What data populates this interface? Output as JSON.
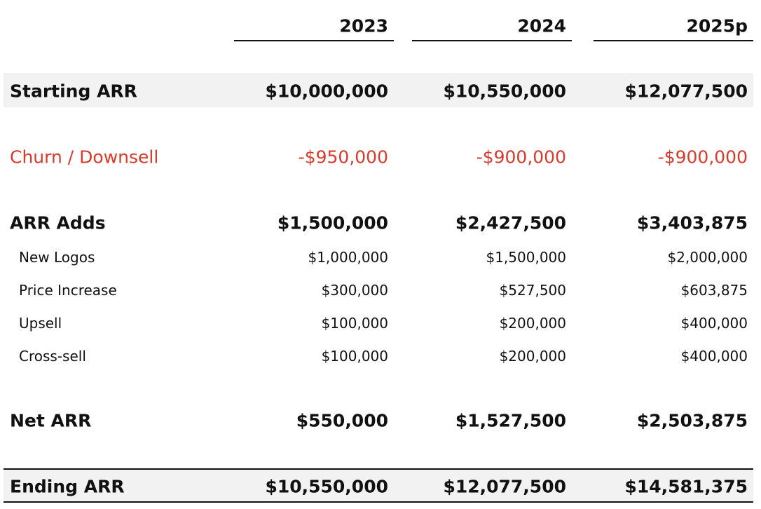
{
  "header": {
    "columns": [
      "2023",
      "2024",
      "2025p"
    ]
  },
  "table": {
    "rows": [
      {
        "label": "Starting ARR",
        "values": [
          "$10,000,000",
          "$10,550,000",
          "$12,077,500"
        ]
      },
      {
        "label": "Churn / Downsell",
        "values": [
          "-$950,000",
          "-$900,000",
          "-$900,000"
        ]
      },
      {
        "label": "ARR Adds",
        "values": [
          "$1,500,000",
          "$2,427,500",
          "$3,403,875"
        ]
      },
      {
        "label": "New Logos",
        "values": [
          "$1,000,000",
          "$1,500,000",
          "$2,000,000"
        ]
      },
      {
        "label": "Price Increase",
        "values": [
          "$300,000",
          "$527,500",
          "$603,875"
        ]
      },
      {
        "label": "Upsell",
        "values": [
          "$100,000",
          "$200,000",
          "$400,000"
        ]
      },
      {
        "label": "Cross-sell",
        "values": [
          "$100,000",
          "$200,000",
          "$400,000"
        ]
      },
      {
        "label": "Net ARR",
        "values": [
          "$550,000",
          "$1,527,500",
          "$2,503,875"
        ]
      },
      {
        "label": "Ending ARR",
        "values": [
          "$10,550,000",
          "$12,077,500",
          "$14,581,375"
        ]
      }
    ]
  }
}
